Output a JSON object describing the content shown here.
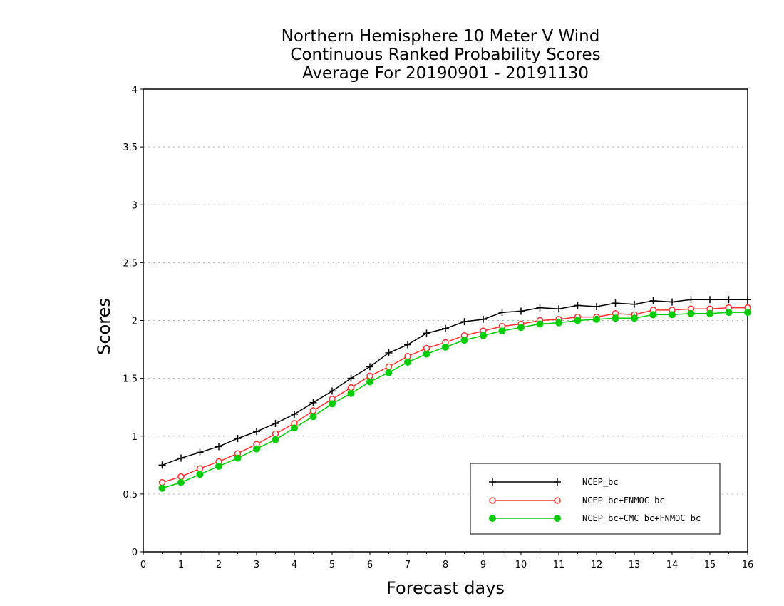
{
  "chart_data": {
    "type": "line",
    "title_lines": [
      "Northern Hemisphere 10 Meter V Wind",
      "Continuous Ranked Probability Scores",
      "Average For 20190901 - 20191130"
    ],
    "xlabel": "Forecast days",
    "ylabel": "Scores",
    "xlim": [
      0,
      16
    ],
    "ylim": [
      0,
      4
    ],
    "x_ticks": [
      "0",
      "1",
      "2",
      "3",
      "4",
      "5",
      "6",
      "7",
      "8",
      "9",
      "10",
      "11",
      "12",
      "13",
      "14",
      "15",
      "16"
    ],
    "y_ticks": [
      "0",
      "0.5",
      "1",
      "1.5",
      "2",
      "2.5",
      "3",
      "3.5",
      "4"
    ],
    "grid": "horizontal-dotted",
    "legend_position": "bottom-right",
    "x": [
      0.5,
      1,
      1.5,
      2,
      2.5,
      3,
      3.5,
      4,
      4.5,
      5,
      5.5,
      6,
      6.5,
      7,
      7.5,
      8,
      8.5,
      9,
      9.5,
      10,
      10.5,
      11,
      11.5,
      12,
      12.5,
      13,
      13.5,
      14,
      14.5,
      15,
      15.5,
      16
    ],
    "series": [
      {
        "name": "NCEP_bc",
        "color": "#000000",
        "marker": "plus",
        "values": [
          0.75,
          0.81,
          0.86,
          0.91,
          0.98,
          1.04,
          1.11,
          1.19,
          1.29,
          1.39,
          1.5,
          1.6,
          1.72,
          1.79,
          1.89,
          1.93,
          1.99,
          2.01,
          2.07,
          2.08,
          2.11,
          2.1,
          2.13,
          2.12,
          2.15,
          2.14,
          2.17,
          2.16,
          2.18,
          2.18,
          2.18,
          2.18
        ]
      },
      {
        "name": "NCEP_bc+FNMOC_bc",
        "color": "#ff3030",
        "marker": "open-circle",
        "values": [
          0.6,
          0.65,
          0.72,
          0.78,
          0.85,
          0.93,
          1.02,
          1.11,
          1.22,
          1.32,
          1.42,
          1.52,
          1.6,
          1.69,
          1.76,
          1.81,
          1.87,
          1.91,
          1.95,
          1.97,
          2.0,
          2.01,
          2.03,
          2.03,
          2.06,
          2.05,
          2.09,
          2.09,
          2.1,
          2.1,
          2.11,
          2.11
        ]
      },
      {
        "name": "NCEP_bc+CMC_bc+FNMOC_bc",
        "color": "#00cc00",
        "marker": "filled-circle",
        "values": [
          0.55,
          0.6,
          0.67,
          0.74,
          0.81,
          0.89,
          0.97,
          1.07,
          1.17,
          1.28,
          1.37,
          1.47,
          1.55,
          1.64,
          1.71,
          1.77,
          1.83,
          1.87,
          1.91,
          1.94,
          1.97,
          1.98,
          2.0,
          2.01,
          2.02,
          2.02,
          2.05,
          2.05,
          2.06,
          2.06,
          2.07,
          2.07
        ]
      }
    ]
  }
}
